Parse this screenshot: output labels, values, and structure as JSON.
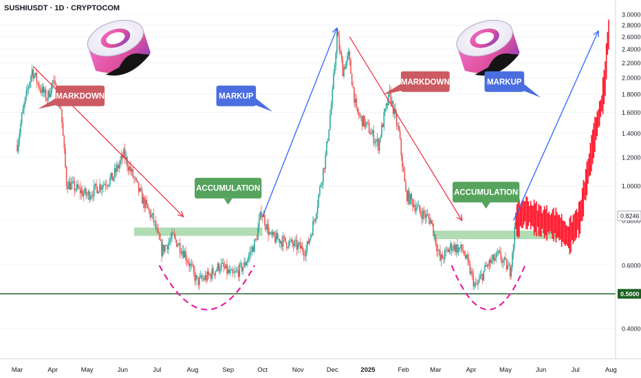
{
  "header": {
    "title": "SUSHIUSDT · 1D · CRYPTOCOM"
  },
  "chart_data": {
    "type": "candlestick",
    "symbol": "SUSHIUSDT",
    "interval": "1D",
    "exchange": "CRYPTOCOM",
    "x_tick_labels": [
      "Mar",
      "Apr",
      "May",
      "Jun",
      "Jul",
      "Aug",
      "Sep",
      "Oct",
      "Nov",
      "Dec",
      "2025",
      "Feb",
      "Mar",
      "Apr",
      "May",
      "Jun",
      "Jul",
      "Aug"
    ],
    "y_tick_labels": [
      "3.0000",
      "2.8000",
      "2.6000",
      "2.4000",
      "2.2000",
      "2.0000",
      "1.8000",
      "1.6000",
      "1.4000",
      "1.2000",
      "1.0000",
      "0.8000",
      "0.6000",
      "0.4000"
    ],
    "y_ticks": [
      3.0,
      2.8,
      2.6,
      2.4,
      2.2,
      2.0,
      1.8,
      1.6,
      1.4,
      1.2,
      1.0,
      0.8,
      0.6,
      0.4
    ],
    "y_scale": "log",
    "ylim": [
      0.34,
      3.15
    ],
    "last_price": {
      "label": "0.8246",
      "value": 0.8246
    },
    "support_level": {
      "label": "0.5000",
      "value": 0.5
    },
    "colors": {
      "up": "#26a69a",
      "down": "#ef5350",
      "projection": "#ff1a2e",
      "markdown_line": "#f23645",
      "markup_line": "#2962ff",
      "accumulation_zone": "#a5d6a7",
      "support_line": "#1b5e20",
      "arc": "#e91e9c"
    },
    "price_path": [
      {
        "date": "2024-03-01",
        "close": 1.3
      },
      {
        "date": "2024-03-05",
        "close": 1.55
      },
      {
        "date": "2024-03-10",
        "close": 1.85
      },
      {
        "date": "2024-03-14",
        "close": 2.1
      },
      {
        "date": "2024-03-20",
        "close": 1.9
      },
      {
        "date": "2024-03-27",
        "close": 1.75
      },
      {
        "date": "2024-04-01",
        "close": 1.95
      },
      {
        "date": "2024-04-08",
        "close": 1.65
      },
      {
        "date": "2024-04-13",
        "close": 1.02
      },
      {
        "date": "2024-04-22",
        "close": 0.98
      },
      {
        "date": "2024-05-01",
        "close": 0.94
      },
      {
        "date": "2024-05-12",
        "close": 1.0
      },
      {
        "date": "2024-05-23",
        "close": 1.05
      },
      {
        "date": "2024-06-02",
        "close": 1.22
      },
      {
        "date": "2024-06-08",
        "close": 1.1
      },
      {
        "date": "2024-06-18",
        "close": 0.92
      },
      {
        "date": "2024-06-28",
        "close": 0.8
      },
      {
        "date": "2024-07-05",
        "close": 0.66
      },
      {
        "date": "2024-07-15",
        "close": 0.72
      },
      {
        "date": "2024-07-25",
        "close": 0.65
      },
      {
        "date": "2024-08-05",
        "close": 0.54
      },
      {
        "date": "2024-08-15",
        "close": 0.56
      },
      {
        "date": "2024-08-25",
        "close": 0.6
      },
      {
        "date": "2024-09-05",
        "close": 0.56
      },
      {
        "date": "2024-09-15",
        "close": 0.6
      },
      {
        "date": "2024-09-25",
        "close": 0.7
      },
      {
        "date": "2024-09-30",
        "close": 0.85
      },
      {
        "date": "2024-10-08",
        "close": 0.72
      },
      {
        "date": "2024-10-20",
        "close": 0.7
      },
      {
        "date": "2024-10-30",
        "close": 0.68
      },
      {
        "date": "2024-11-08",
        "close": 0.66
      },
      {
        "date": "2024-11-15",
        "close": 0.8
      },
      {
        "date": "2024-11-25",
        "close": 1.2
      },
      {
        "date": "2024-12-01",
        "close": 1.8
      },
      {
        "date": "2024-12-05",
        "close": 2.65
      },
      {
        "date": "2024-12-10",
        "close": 2.1
      },
      {
        "date": "2024-12-15",
        "close": 2.3
      },
      {
        "date": "2024-12-22",
        "close": 1.6
      },
      {
        "date": "2025-01-01",
        "close": 1.45
      },
      {
        "date": "2025-01-10",
        "close": 1.3
      },
      {
        "date": "2025-01-15",
        "close": 1.55
      },
      {
        "date": "2025-01-20",
        "close": 1.8
      },
      {
        "date": "2025-01-28",
        "close": 1.4
      },
      {
        "date": "2025-02-03",
        "close": 0.95
      },
      {
        "date": "2025-02-15",
        "close": 0.85
      },
      {
        "date": "2025-02-25",
        "close": 0.8
      },
      {
        "date": "2025-03-05",
        "close": 0.62
      },
      {
        "date": "2025-03-15",
        "close": 0.68
      },
      {
        "date": "2025-03-25",
        "close": 0.66
      },
      {
        "date": "2025-04-05",
        "close": 0.52
      },
      {
        "date": "2025-04-15",
        "close": 0.6
      },
      {
        "date": "2025-04-25",
        "close": 0.64
      },
      {
        "date": "2025-05-05",
        "close": 0.58
      },
      {
        "date": "2025-05-10",
        "close": 0.8
      }
    ],
    "projection_path": [
      {
        "date": "2025-05-10",
        "value": 0.8
      },
      {
        "date": "2025-05-18",
        "value": 0.85
      },
      {
        "date": "2025-06-01",
        "value": 0.8
      },
      {
        "date": "2025-06-15",
        "value": 0.78
      },
      {
        "date": "2025-06-25",
        "value": 0.72
      },
      {
        "date": "2025-07-05",
        "value": 0.82
      },
      {
        "date": "2025-07-12",
        "value": 1.1
      },
      {
        "date": "2025-07-18",
        "value": 1.4
      },
      {
        "date": "2025-07-24",
        "value": 1.7
      },
      {
        "date": "2025-07-27",
        "value": 2.0
      },
      {
        "date": "2025-07-29",
        "value": 2.5
      },
      {
        "date": "2025-07-30",
        "value": 2.65
      }
    ],
    "trend_lines": [
      {
        "type": "markdown",
        "from": {
          "date": "2024-03-15",
          "value": 2.15
        },
        "to": {
          "date": "2024-07-24",
          "value": 0.82
        }
      },
      {
        "type": "markup",
        "from": {
          "date": "2024-10-01",
          "value": 0.82
        },
        "to": {
          "date": "2024-12-05",
          "value": 2.75
        }
      },
      {
        "type": "markdown",
        "from": {
          "date": "2024-12-16",
          "value": 2.6
        },
        "to": {
          "date": "2025-03-24",
          "value": 0.8
        }
      },
      {
        "type": "markup",
        "from": {
          "date": "2025-05-08",
          "value": 0.8
        },
        "to": {
          "date": "2025-07-21",
          "value": 2.7
        }
      }
    ],
    "accumulation_zones": [
      {
        "from": "2024-06-11",
        "to": "2024-10-01",
        "low": 0.725,
        "high": 0.765
      },
      {
        "from": "2025-02-27",
        "to": "2025-06-19",
        "low": 0.71,
        "high": 0.75
      }
    ],
    "accumulation_arcs": [
      {
        "from": "2024-07-03",
        "to": "2024-09-24"
      },
      {
        "from": "2025-03-15",
        "to": "2025-05-18"
      }
    ],
    "annotations": [
      {
        "text": "MARKDOWN",
        "style": "markdown",
        "date": "2024-04-25",
        "value": 1.78
      },
      {
        "text": "MARKUP",
        "style": "markup",
        "date": "2024-09-08",
        "value": 1.78
      },
      {
        "text": "ACCUMULATION",
        "style": "accumulation",
        "date": "2024-09-01",
        "value": 0.985
      },
      {
        "text": "MARKDOWN",
        "style": "markdown",
        "date": "2025-02-20",
        "value": 1.95
      },
      {
        "text": "MARKUP",
        "style": "markup",
        "date": "2025-04-30",
        "value": 1.95
      },
      {
        "text": "ACCUMULATION",
        "style": "accumulation",
        "date": "2025-04-14",
        "value": 0.96
      }
    ],
    "logos": [
      {
        "icon": "sushi-logo-icon",
        "date": "2024-05-28",
        "value": 2.45
      },
      {
        "icon": "sushi-logo-icon",
        "date": "2025-04-15",
        "value": 2.45
      }
    ]
  }
}
